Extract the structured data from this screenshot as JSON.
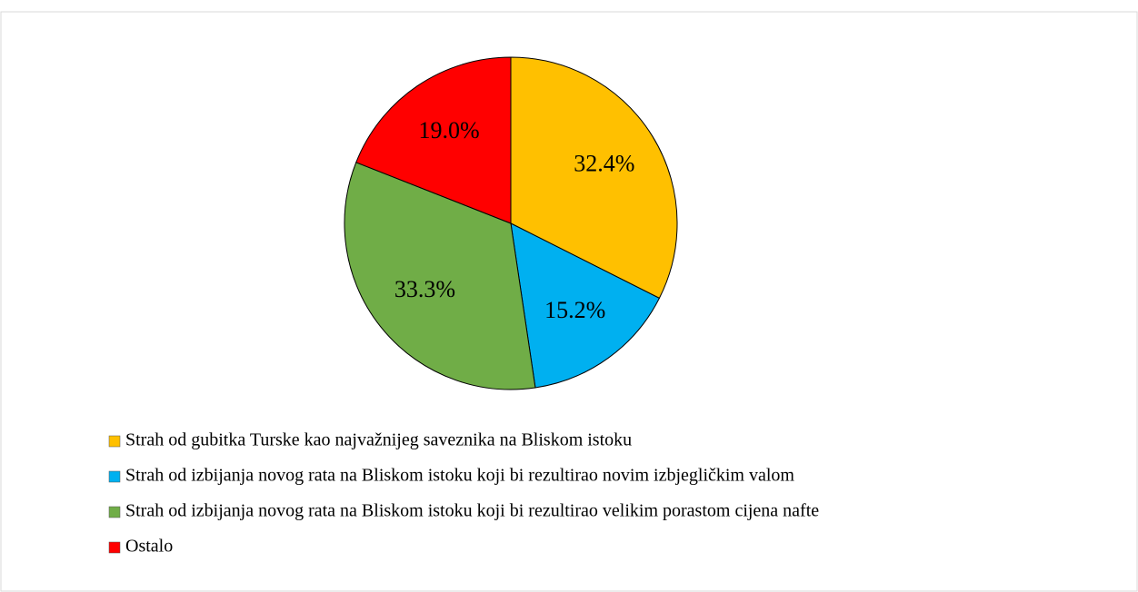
{
  "chart_data": {
    "type": "pie",
    "categories": [
      "Strah od gubitka Turske kao najvažnijeg saveznika na Bliskom istoku",
      "Strah od izbijanja novog rata na Bliskom istoku koji bi rezultirao novim izbjegličkim valom",
      "Strah od izbijanja novog rata na Bliskom istoku koji bi rezultirao velikim porastom cijena nafte",
      "Ostalo"
    ],
    "values": [
      32.4,
      15.2,
      33.3,
      19.0
    ],
    "value_labels": [
      "32.4%",
      "15.2%",
      "33.3%",
      "19.0%"
    ],
    "colors": [
      "#FFC000",
      "#00B0F0",
      "#70AD47",
      "#FF0000"
    ],
    "legend": "bottom"
  }
}
